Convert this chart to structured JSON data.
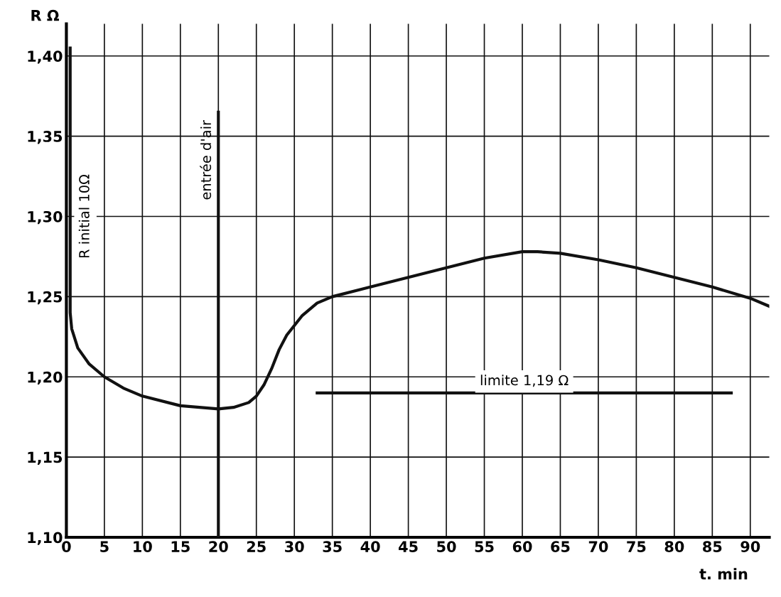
{
  "chart_data": {
    "type": "line",
    "xlabel": "t. min",
    "ylabel": "R Ω",
    "series": [
      {
        "color": "#111111",
        "x": [
          0.5,
          0.5,
          0.7,
          1.5,
          3,
          5,
          7.5,
          10,
          15,
          20,
          22,
          24,
          25,
          26,
          27,
          28,
          29,
          31,
          33,
          35,
          40,
          45,
          50,
          55,
          60,
          62,
          65,
          70,
          75,
          80,
          85,
          90,
          92.5
        ],
        "values": [
          1.405,
          1.24,
          1.23,
          1.218,
          1.208,
          1.2,
          1.193,
          1.188,
          1.182,
          1.18,
          1.181,
          1.184,
          1.188,
          1.195,
          1.205,
          1.217,
          1.226,
          1.238,
          1.246,
          1.25,
          1.256,
          1.262,
          1.268,
          1.274,
          1.278,
          1.278,
          1.277,
          1.273,
          1.268,
          1.262,
          1.256,
          1.249,
          1.244
        ]
      },
      {
        "name": "limite 1,19 Ω",
        "color": "#111111",
        "x": [
          33,
          87.5
        ],
        "values": [
          1.19,
          1.19
        ]
      },
      {
        "name": "entrée d'air",
        "color": "#111111",
        "x": [
          20,
          20
        ],
        "values": [
          1.1,
          1.365
        ]
      }
    ],
    "annotations": [
      {
        "text": "R initial 10Ω",
        "x": 0.5,
        "y": 1.3
      }
    ],
    "xlim": [
      0,
      92.5
    ],
    "ylim": [
      1.1,
      1.42
    ],
    "xticks": [
      0,
      5,
      10,
      15,
      20,
      25,
      30,
      35,
      40,
      45,
      50,
      55,
      60,
      65,
      70,
      75,
      80,
      85,
      90
    ],
    "yticks": [
      {
        "value": 1.1,
        "label": "1,10"
      },
      {
        "value": 1.15,
        "label": "1,15"
      },
      {
        "value": 1.2,
        "label": "1,20"
      },
      {
        "value": 1.25,
        "label": "1,25"
      },
      {
        "value": 1.3,
        "label": "1,30"
      },
      {
        "value": 1.35,
        "label": "1,35"
      },
      {
        "value": 1.4,
        "label": "1,40"
      }
    ],
    "grid": true,
    "legend": false,
    "marker": "none",
    "line_style": "solid"
  }
}
